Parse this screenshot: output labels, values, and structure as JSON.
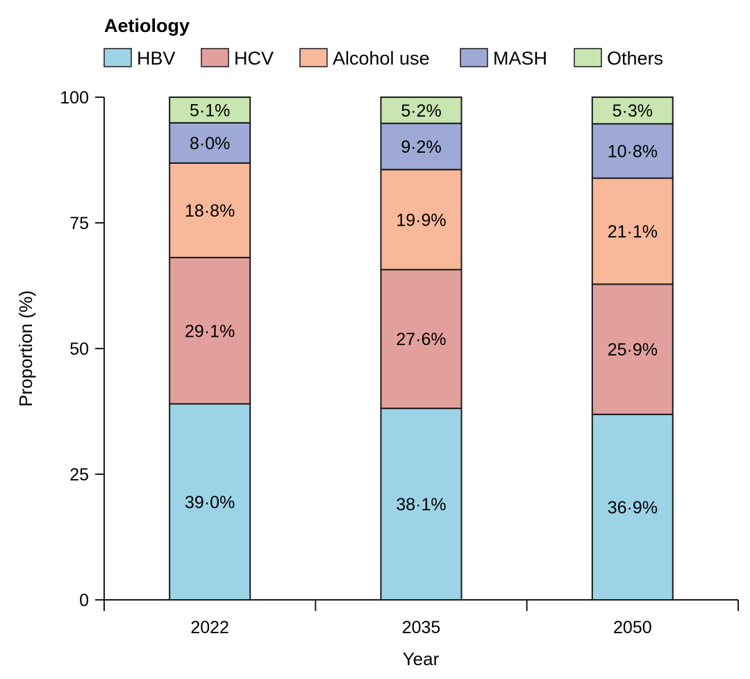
{
  "chart_data": {
    "type": "bar",
    "stacked": true,
    "legend_title": "Aetiology",
    "legend_placement": "top",
    "xlabel": "Year",
    "ylabel": "Proportion (%)",
    "ylim": [
      0,
      100
    ],
    "yticks": [
      "0",
      "25",
      "50",
      "75",
      "100"
    ],
    "grid": false,
    "categories": [
      "2022",
      "2035",
      "2050"
    ],
    "series": [
      {
        "name": "HBV",
        "color": "#9dd3e6",
        "values": [
          39.0,
          38.1,
          36.9
        ],
        "labels": [
          "39·0%",
          "38·1%",
          "36·9%"
        ]
      },
      {
        "name": "HCV",
        "color": "#e2a09d",
        "values": [
          29.1,
          27.6,
          25.9
        ],
        "labels": [
          "29·1%",
          "27·6%",
          "25·9%"
        ]
      },
      {
        "name": "Alcohol use",
        "color": "#f8b89a",
        "values": [
          18.8,
          19.9,
          21.1
        ],
        "labels": [
          "18·8%",
          "19·9%",
          "21·1%"
        ]
      },
      {
        "name": "MASH",
        "color": "#9ea9d6",
        "values": [
          8.0,
          9.2,
          10.8
        ],
        "labels": [
          "8·0%",
          "9·2%",
          "10·8%"
        ]
      },
      {
        "name": "Others",
        "color": "#c9e5b1",
        "values": [
          5.1,
          5.2,
          5.3
        ],
        "labels": [
          "5·1%",
          "5·2%",
          "5·3%"
        ]
      }
    ]
  }
}
